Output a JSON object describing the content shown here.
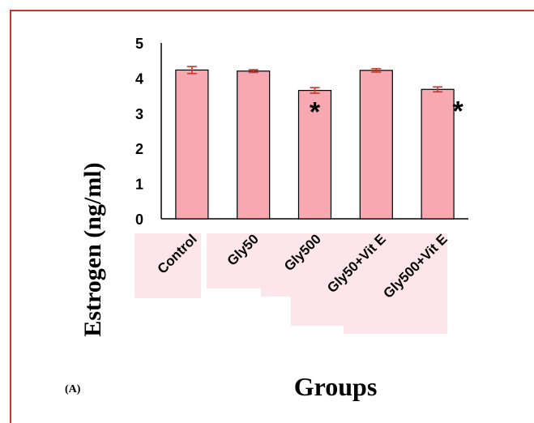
{
  "chart_data": {
    "type": "bar",
    "categories": [
      "Control",
      "Gly50",
      "Gly500",
      "Gly50+Vit E",
      "Gly500+Vit E"
    ],
    "values": [
      4.23,
      4.2,
      3.65,
      4.22,
      3.68
    ],
    "errors": [
      0.1,
      0.04,
      0.08,
      0.05,
      0.07
    ],
    "significance": [
      "",
      "",
      "*",
      "",
      "*"
    ],
    "xlabel": "Groups",
    "ylabel": "Estrogen (ng/ml)",
    "ylim": [
      0,
      5
    ],
    "yticks": [
      "0",
      "1",
      "2",
      "3",
      "4",
      "5"
    ],
    "panel_label": "(A)",
    "grid": false,
    "legend": "none"
  },
  "colors": {
    "bar_fill": "#f7a8b0",
    "bar_stroke": "#000000",
    "error_bar": "#c0392b",
    "frame": "#c0392b",
    "label_bg": "#fde6e9"
  }
}
